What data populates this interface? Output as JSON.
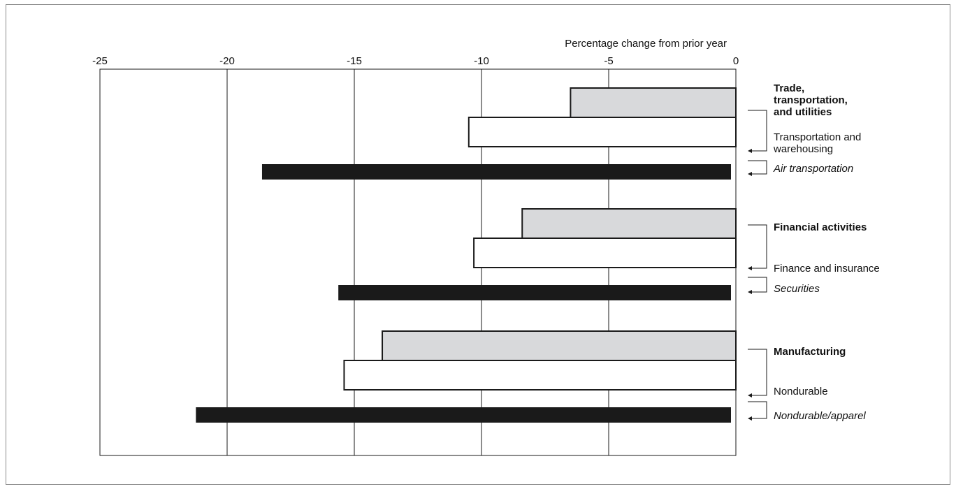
{
  "chart_data": {
    "type": "bar",
    "orientation": "horizontal",
    "title": "Percentage change from prior year",
    "xlim": [
      -25,
      0
    ],
    "x_ticks": [
      -25,
      -20,
      -15,
      -10,
      -5,
      0
    ],
    "grid": true,
    "legend": "none",
    "groups": [
      {
        "bars": [
          {
            "label": "Trade, transportation, and utilities",
            "value": -6.5,
            "level": "sector"
          },
          {
            "label": "Transportation and warehousing",
            "value": -10.5,
            "level": "industry"
          },
          {
            "label": "Air transportation",
            "value": -18.6,
            "level": "detail"
          }
        ]
      },
      {
        "bars": [
          {
            "label": "Financial activities",
            "value": -8.4,
            "level": "sector"
          },
          {
            "label": "Finance and insurance",
            "value": -10.3,
            "level": "industry"
          },
          {
            "label": "Securities",
            "value": -15.6,
            "level": "detail"
          }
        ]
      },
      {
        "bars": [
          {
            "label": "Manufacturing",
            "value": -13.9,
            "level": "sector"
          },
          {
            "label": "Nondurable",
            "value": -15.4,
            "level": "industry"
          },
          {
            "label": "Nondurable/apparel",
            "value": -21.2,
            "level": "detail"
          }
        ]
      }
    ],
    "colors": {
      "sector": "#d8d9db",
      "industry": "#ffffff",
      "detail": "#1a1a1a",
      "outline": "#1a1a1a",
      "grid": "#1a1a1a"
    }
  }
}
